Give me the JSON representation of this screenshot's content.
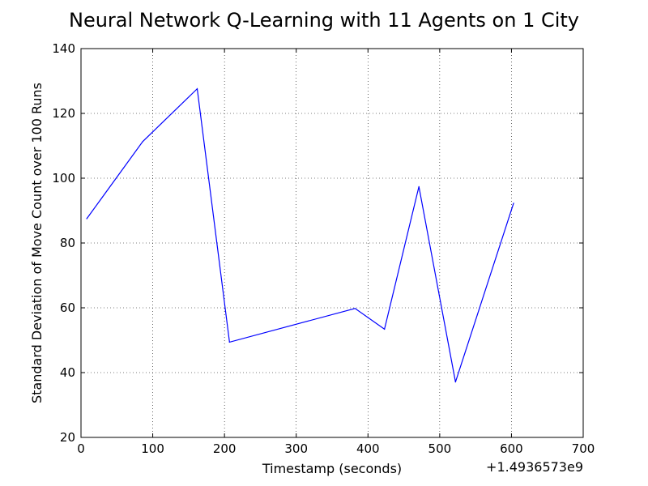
{
  "chart_data": {
    "type": "line",
    "title": "Neural Network Q-Learning with 11 Agents on 1 City",
    "xlabel": "Timestamp (seconds)",
    "ylabel": "Standard Deviation of Move Count over 100 Runs",
    "x_offset_label": "+1.4936573e9",
    "xlim": [
      0,
      700
    ],
    "ylim": [
      20,
      140
    ],
    "xticks": [
      "0",
      "100",
      "200",
      "300",
      "400",
      "500",
      "600",
      "700"
    ],
    "yticks": [
      "20",
      "40",
      "60",
      "80",
      "100",
      "120",
      "140"
    ],
    "grid": true,
    "series": [
      {
        "color": "#0000ff",
        "x": [
          8,
          86,
          162,
          207,
          382,
          423,
          471,
          522,
          603
        ],
        "y": [
          87.5,
          111.3,
          127.6,
          49.4,
          59.8,
          53.4,
          97.4,
          37.1,
          92.3
        ]
      }
    ]
  }
}
